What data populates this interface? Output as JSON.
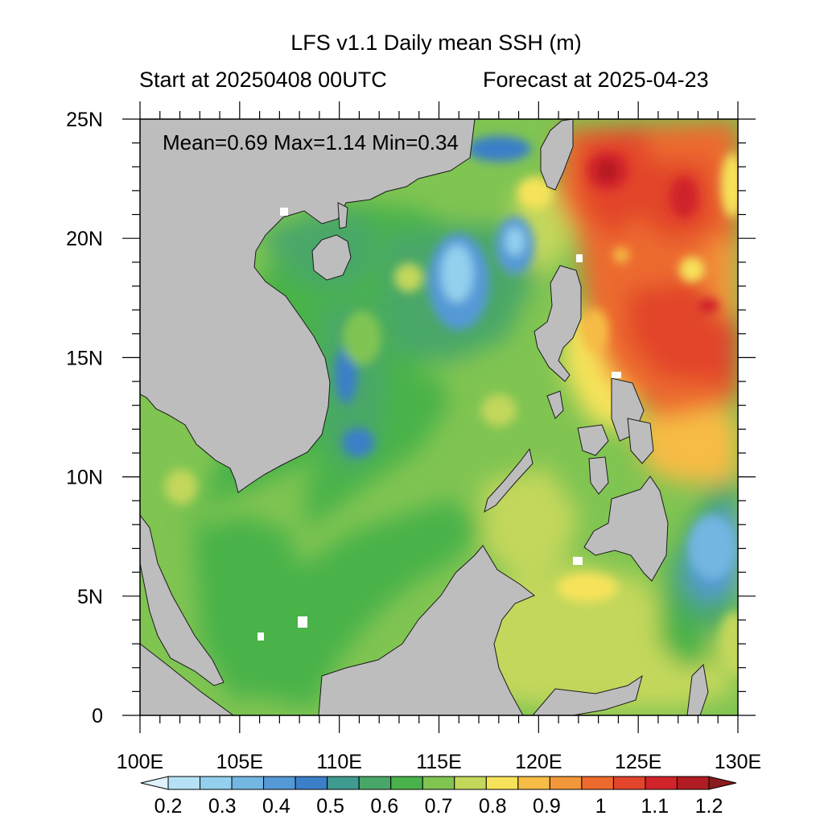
{
  "title": "LFS v1.1 Daily mean SSH (m)",
  "subtitle_left": "Start at 20250408 00UTC",
  "subtitle_right": "Forecast at 2025-04-23",
  "stats": "Mean=0.69  Max=1.14  Min=0.34",
  "axes": {
    "lon_range": [
      100,
      130
    ],
    "lat_range": [
      0,
      25
    ],
    "lon_ticks": [
      {
        "v": 100,
        "label": "100E"
      },
      {
        "v": 105,
        "label": "105E"
      },
      {
        "v": 110,
        "label": "110E"
      },
      {
        "v": 115,
        "label": "115E"
      },
      {
        "v": 120,
        "label": "120E"
      },
      {
        "v": 125,
        "label": "125E"
      },
      {
        "v": 130,
        "label": "130E"
      }
    ],
    "lat_ticks": [
      {
        "v": 0,
        "label": "0"
      },
      {
        "v": 5,
        "label": "5N"
      },
      {
        "v": 10,
        "label": "10N"
      },
      {
        "v": 15,
        "label": "15N"
      },
      {
        "v": 20,
        "label": "20N"
      },
      {
        "v": 25,
        "label": "25N"
      }
    ]
  },
  "colorbar": {
    "colors": [
      "#ddf2fa",
      "#b6e1f4",
      "#93d0ee",
      "#72b6e1",
      "#5599d6",
      "#3b7fc8",
      "#3f9b8f",
      "#48a768",
      "#49b24a",
      "#80c452",
      "#c3d75b",
      "#f7e35a",
      "#f6bc45",
      "#f3973b",
      "#ec6a2d",
      "#e2452b",
      "#d0242a",
      "#b01c22",
      "#8a1a1d"
    ],
    "label_ticks": [
      {
        "v": 0.2,
        "label": "0.2"
      },
      {
        "v": 0.3,
        "label": "0.3"
      },
      {
        "v": 0.4,
        "label": "0.4"
      },
      {
        "v": 0.5,
        "label": "0.5"
      },
      {
        "v": 0.6,
        "label": "0.6"
      },
      {
        "v": 0.7,
        "label": "0.7"
      },
      {
        "v": 0.8,
        "label": "0.8"
      },
      {
        "v": 0.9,
        "label": "0.9"
      },
      {
        "v": 1.0,
        "label": "1"
      },
      {
        "v": 1.1,
        "label": "1.1"
      },
      {
        "v": 1.2,
        "label": "1.2"
      }
    ]
  },
  "colors": {
    "land": "#bdbdbd",
    "ocean_base": "#80c452"
  }
}
